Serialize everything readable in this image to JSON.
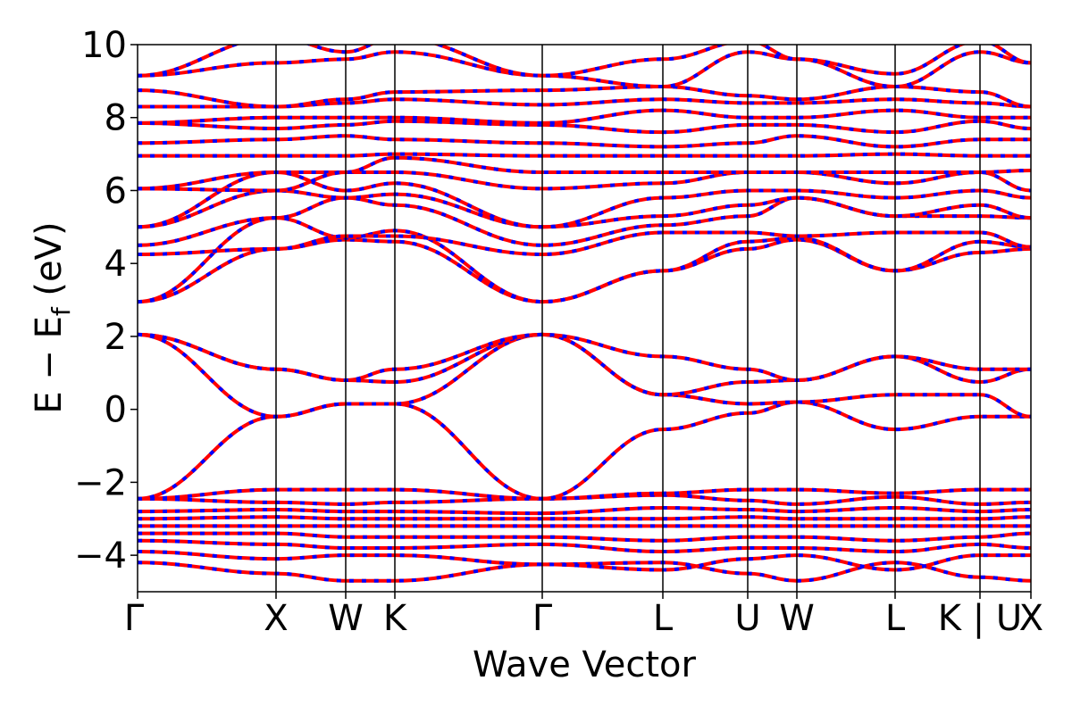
{
  "chart_data": {
    "type": "line",
    "xlabel": "Wave Vector",
    "ylabel_main": "E − E",
    "ylabel_sub": "f",
    "ylabel_unit": " (eV)",
    "ylim": [
      -5,
      10
    ],
    "xlim": [
      0,
      1
    ],
    "yticks": [
      -4,
      -2,
      0,
      2,
      4,
      6,
      8,
      10
    ],
    "ytick_labels": [
      "−4",
      "−2",
      "0",
      "2",
      "4",
      "6",
      "8",
      "10"
    ],
    "kpoints": [
      {
        "label": "Γ",
        "x": 0.0
      },
      {
        "label": "X",
        "x": 0.155
      },
      {
        "label": "W",
        "x": 0.233
      },
      {
        "label": "K",
        "x": 0.288
      },
      {
        "label": "Γ",
        "x": 0.453
      },
      {
        "label": "L",
        "x": 0.588
      },
      {
        "label": "U",
        "x": 0.683
      },
      {
        "label": "W",
        "x": 0.738
      },
      {
        "label": "L",
        "x": 0.848
      },
      {
        "label": "K | U",
        "x": 0.943
      },
      {
        "label": "X",
        "x": 1.0
      }
    ],
    "colors": {
      "spin_up": "#ff0000",
      "spin_down": "#0000ff",
      "frame": "#000000"
    },
    "bands": [
      [
        [
          0,
          -4.2
        ],
        [
          0.155,
          -4.5
        ],
        [
          0.233,
          -4.7
        ],
        [
          0.288,
          -4.7
        ],
        [
          0.453,
          -4.25
        ],
        [
          0.588,
          -4.2
        ],
        [
          0.683,
          -4.5
        ],
        [
          0.738,
          -4.7
        ],
        [
          0.848,
          -4.2
        ],
        [
          0.943,
          -4.6
        ],
        [
          1,
          -4.7
        ]
      ],
      [
        [
          0,
          -3.9
        ],
        [
          0.155,
          -4.1
        ],
        [
          0.233,
          -4.0
        ],
        [
          0.288,
          -4.0
        ],
        [
          0.453,
          -4.25
        ],
        [
          0.588,
          -4.4
        ],
        [
          0.683,
          -4.1
        ],
        [
          0.738,
          -4.0
        ],
        [
          0.848,
          -4.4
        ],
        [
          0.943,
          -4.0
        ],
        [
          1,
          -4.0
        ]
      ],
      [
        [
          0,
          -3.6
        ],
        [
          0.155,
          -3.7
        ],
        [
          0.233,
          -3.8
        ],
        [
          0.288,
          -3.8
        ],
        [
          0.453,
          -3.7
        ],
        [
          0.588,
          -3.9
        ],
        [
          0.683,
          -3.8
        ],
        [
          0.738,
          -3.8
        ],
        [
          0.848,
          -3.9
        ],
        [
          0.943,
          -3.7
        ],
        [
          1,
          -3.8
        ]
      ],
      [
        [
          0,
          -3.4
        ],
        [
          0.155,
          -3.4
        ],
        [
          0.233,
          -3.5
        ],
        [
          0.288,
          -3.5
        ],
        [
          0.453,
          -3.5
        ],
        [
          0.588,
          -3.6
        ],
        [
          0.683,
          -3.5
        ],
        [
          0.738,
          -3.5
        ],
        [
          0.848,
          -3.6
        ],
        [
          0.943,
          -3.5
        ],
        [
          1,
          -3.4
        ]
      ],
      [
        [
          0,
          -3.2
        ],
        [
          0.155,
          -3.2
        ],
        [
          0.233,
          -3.2
        ],
        [
          0.288,
          -3.2
        ],
        [
          0.453,
          -3.2
        ],
        [
          0.588,
          -3.2
        ],
        [
          0.683,
          -3.2
        ],
        [
          0.738,
          -3.2
        ],
        [
          0.848,
          -3.2
        ],
        [
          0.943,
          -3.2
        ],
        [
          1,
          -3.2
        ]
      ],
      [
        [
          0,
          -3.0
        ],
        [
          0.155,
          -2.95
        ],
        [
          0.233,
          -3.0
        ],
        [
          0.288,
          -3.0
        ],
        [
          0.453,
          -3.0
        ],
        [
          0.588,
          -3.0
        ],
        [
          0.683,
          -2.95
        ],
        [
          0.738,
          -3.0
        ],
        [
          0.848,
          -3.0
        ],
        [
          0.943,
          -3.0
        ],
        [
          1,
          -2.95
        ]
      ],
      [
        [
          0,
          -2.8
        ],
        [
          0.155,
          -2.75
        ],
        [
          0.233,
          -2.8
        ],
        [
          0.288,
          -2.8
        ],
        [
          0.453,
          -2.85
        ],
        [
          0.588,
          -2.7
        ],
        [
          0.683,
          -2.75
        ],
        [
          0.738,
          -2.8
        ],
        [
          0.848,
          -2.7
        ],
        [
          0.943,
          -2.8
        ],
        [
          1,
          -2.75
        ]
      ],
      [
        [
          0,
          -2.45
        ],
        [
          0.155,
          -2.55
        ],
        [
          0.233,
          -2.6
        ],
        [
          0.288,
          -2.55
        ],
        [
          0.453,
          -2.45
        ],
        [
          0.588,
          -2.35
        ],
        [
          0.683,
          -2.5
        ],
        [
          0.738,
          -2.6
        ],
        [
          0.848,
          -2.4
        ],
        [
          0.943,
          -2.6
        ],
        [
          1,
          -2.55
        ]
      ],
      [
        [
          0,
          -2.45
        ],
        [
          0.155,
          -2.2
        ],
        [
          0.233,
          -2.2
        ],
        [
          0.288,
          -2.2
        ],
        [
          0.453,
          -2.45
        ],
        [
          0.588,
          -2.3
        ],
        [
          0.683,
          -2.2
        ],
        [
          0.738,
          -2.2
        ],
        [
          0.848,
          -2.3
        ],
        [
          0.943,
          -2.2
        ],
        [
          1,
          -2.2
        ]
      ],
      [
        [
          0,
          -2.45
        ],
        [
          0.155,
          -0.2
        ],
        [
          0.233,
          0.15
        ],
        [
          0.288,
          0.15
        ],
        [
          0.453,
          -2.45
        ],
        [
          0.588,
          -0.55
        ],
        [
          0.683,
          -0.1
        ],
        [
          0.738,
          0.2
        ],
        [
          0.848,
          -0.55
        ],
        [
          0.943,
          -0.2
        ],
        [
          1,
          -0.2
        ]
      ],
      [
        [
          0,
          2.05
        ],
        [
          0.155,
          -0.2
        ],
        [
          0.233,
          0.15
        ],
        [
          0.288,
          0.15
        ],
        [
          0.453,
          2.05
        ],
        [
          0.588,
          0.4
        ],
        [
          0.683,
          0.15
        ],
        [
          0.738,
          0.2
        ],
        [
          0.848,
          0.4
        ],
        [
          0.943,
          0.4
        ],
        [
          1,
          -0.2
        ]
      ],
      [
        [
          0,
          2.05
        ],
        [
          0.155,
          1.1
        ],
        [
          0.233,
          0.8
        ],
        [
          0.288,
          0.75
        ],
        [
          0.453,
          2.05
        ],
        [
          0.588,
          0.4
        ],
        [
          0.683,
          0.75
        ],
        [
          0.738,
          0.8
        ],
        [
          0.848,
          1.45
        ],
        [
          0.943,
          0.75
        ],
        [
          1,
          1.1
        ]
      ],
      [
        [
          0,
          2.05
        ],
        [
          0.155,
          1.1
        ],
        [
          0.233,
          0.8
        ],
        [
          0.288,
          1.1
        ],
        [
          0.453,
          2.05
        ],
        [
          0.588,
          1.45
        ],
        [
          0.683,
          1.1
        ],
        [
          0.738,
          0.8
        ],
        [
          0.848,
          1.45
        ],
        [
          0.943,
          1.1
        ],
        [
          1,
          1.1
        ]
      ],
      [
        [
          0,
          2.95
        ],
        [
          0.155,
          4.4
        ],
        [
          0.233,
          4.65
        ],
        [
          0.288,
          4.6
        ],
        [
          0.453,
          2.95
        ],
        [
          0.588,
          3.8
        ],
        [
          0.683,
          4.4
        ],
        [
          0.738,
          4.65
        ],
        [
          0.848,
          3.8
        ],
        [
          0.943,
          4.3
        ],
        [
          1,
          4.4
        ]
      ],
      [
        [
          0,
          2.95
        ],
        [
          0.155,
          5.25
        ],
        [
          0.233,
          4.7
        ],
        [
          0.288,
          4.9
        ],
        [
          0.453,
          2.95
        ],
        [
          0.588,
          3.8
        ],
        [
          0.683,
          4.6
        ],
        [
          0.738,
          4.7
        ],
        [
          0.848,
          3.8
        ],
        [
          0.943,
          4.6
        ],
        [
          1,
          4.45
        ]
      ],
      [
        [
          0,
          4.25
        ],
        [
          0.155,
          4.4
        ],
        [
          0.233,
          4.75
        ],
        [
          0.288,
          4.75
        ],
        [
          0.453,
          4.25
        ],
        [
          0.588,
          4.85
        ],
        [
          0.683,
          4.85
        ],
        [
          0.738,
          4.75
        ],
        [
          0.848,
          4.85
        ],
        [
          0.943,
          4.85
        ],
        [
          1,
          4.45
        ]
      ],
      [
        [
          0,
          4.5
        ],
        [
          0.155,
          5.25
        ],
        [
          0.233,
          5.8
        ],
        [
          0.288,
          5.6
        ],
        [
          0.453,
          4.5
        ],
        [
          0.588,
          5.05
        ],
        [
          0.683,
          5.3
        ],
        [
          0.738,
          5.8
        ],
        [
          0.848,
          5.3
        ],
        [
          0.943,
          5.3
        ],
        [
          1,
          5.25
        ]
      ],
      [
        [
          0,
          5.0
        ],
        [
          0.155,
          6.0
        ],
        [
          0.233,
          5.8
        ],
        [
          0.288,
          5.9
        ],
        [
          0.453,
          5.0
        ],
        [
          0.588,
          5.3
        ],
        [
          0.683,
          5.6
        ],
        [
          0.738,
          5.8
        ],
        [
          0.848,
          5.3
        ],
        [
          0.943,
          5.6
        ],
        [
          1,
          5.25
        ]
      ],
      [
        [
          0,
          5.0
        ],
        [
          0.155,
          6.5
        ],
        [
          0.233,
          6.0
        ],
        [
          0.288,
          6.2
        ],
        [
          0.453,
          5.0
        ],
        [
          0.588,
          5.8
        ],
        [
          0.683,
          6.0
        ],
        [
          0.738,
          6.0
        ],
        [
          0.848,
          5.8
        ],
        [
          0.943,
          6.0
        ],
        [
          1,
          5.8
        ]
      ],
      [
        [
          0,
          6.05
        ],
        [
          0.155,
          6.5
        ],
        [
          0.233,
          6.5
        ],
        [
          0.288,
          6.5
        ],
        [
          0.453,
          6.05
        ],
        [
          0.588,
          6.2
        ],
        [
          0.683,
          6.5
        ],
        [
          0.738,
          6.5
        ],
        [
          0.848,
          6.2
        ],
        [
          0.943,
          6.5
        ],
        [
          1,
          6.0
        ]
      ],
      [
        [
          0,
          6.05
        ],
        [
          0.155,
          6.0
        ],
        [
          0.233,
          6.5
        ],
        [
          0.288,
          6.9
        ],
        [
          0.453,
          6.5
        ],
        [
          0.588,
          6.5
        ],
        [
          0.683,
          6.5
        ],
        [
          0.738,
          6.5
        ],
        [
          0.848,
          6.5
        ],
        [
          0.943,
          6.5
        ],
        [
          1,
          6.55
        ]
      ],
      [
        [
          0,
          6.95
        ],
        [
          0.155,
          6.95
        ],
        [
          0.233,
          6.95
        ],
        [
          0.288,
          7.0
        ],
        [
          0.453,
          6.95
        ],
        [
          0.588,
          6.95
        ],
        [
          0.683,
          6.95
        ],
        [
          0.738,
          6.95
        ],
        [
          0.848,
          7.0
        ],
        [
          0.943,
          6.95
        ],
        [
          1,
          6.95
        ]
      ],
      [
        [
          0,
          7.3
        ],
        [
          0.155,
          7.4
        ],
        [
          0.233,
          7.5
        ],
        [
          0.288,
          7.4
        ],
        [
          0.453,
          7.3
        ],
        [
          0.588,
          7.2
        ],
        [
          0.683,
          7.3
        ],
        [
          0.738,
          7.5
        ],
        [
          0.848,
          7.2
        ],
        [
          0.943,
          7.4
        ],
        [
          1,
          7.4
        ]
      ],
      [
        [
          0,
          7.85
        ],
        [
          0.155,
          7.7
        ],
        [
          0.233,
          7.8
        ],
        [
          0.288,
          7.9
        ],
        [
          0.453,
          7.8
        ],
        [
          0.588,
          7.6
        ],
        [
          0.683,
          7.8
        ],
        [
          0.738,
          7.8
        ],
        [
          0.848,
          7.6
        ],
        [
          0.943,
          7.9
        ],
        [
          1,
          7.7
        ]
      ],
      [
        [
          0,
          7.85
        ],
        [
          0.155,
          8.0
        ],
        [
          0.233,
          8.0
        ],
        [
          0.288,
          8.0
        ],
        [
          0.453,
          7.85
        ],
        [
          0.588,
          8.2
        ],
        [
          0.683,
          8.0
        ],
        [
          0.738,
          8.0
        ],
        [
          0.848,
          8.2
        ],
        [
          0.943,
          8.0
        ],
        [
          1,
          8.0
        ]
      ],
      [
        [
          0,
          8.3
        ],
        [
          0.155,
          8.3
        ],
        [
          0.233,
          8.4
        ],
        [
          0.288,
          8.5
        ],
        [
          0.453,
          8.35
        ],
        [
          0.588,
          8.5
        ],
        [
          0.683,
          8.4
        ],
        [
          0.738,
          8.4
        ],
        [
          0.848,
          8.5
        ],
        [
          0.943,
          8.4
        ],
        [
          1,
          8.3
        ]
      ],
      [
        [
          0,
          8.75
        ],
        [
          0.155,
          8.3
        ],
        [
          0.233,
          8.5
        ],
        [
          0.288,
          8.7
        ],
        [
          0.453,
          8.75
        ],
        [
          0.588,
          8.85
        ],
        [
          0.683,
          8.6
        ],
        [
          0.738,
          8.5
        ],
        [
          0.848,
          8.85
        ],
        [
          0.943,
          8.7
        ],
        [
          1,
          8.3
        ]
      ],
      [
        [
          0,
          9.15
        ],
        [
          0.155,
          9.5
        ],
        [
          0.233,
          9.6
        ],
        [
          0.288,
          9.8
        ],
        [
          0.453,
          9.15
        ],
        [
          0.588,
          8.85
        ],
        [
          0.683,
          9.8
        ],
        [
          0.738,
          9.6
        ],
        [
          0.848,
          8.85
        ],
        [
          0.943,
          9.8
        ],
        [
          1,
          9.5
        ]
      ],
      [
        [
          0,
          9.15
        ],
        [
          0.155,
          10.2
        ],
        [
          0.233,
          9.8
        ],
        [
          0.288,
          10.2
        ],
        [
          0.453,
          9.15
        ],
        [
          0.588,
          9.6
        ],
        [
          0.683,
          10.1
        ],
        [
          0.738,
          9.6
        ],
        [
          0.848,
          9.2
        ],
        [
          0.943,
          10.1
        ],
        [
          1,
          9.5
        ]
      ]
    ]
  }
}
